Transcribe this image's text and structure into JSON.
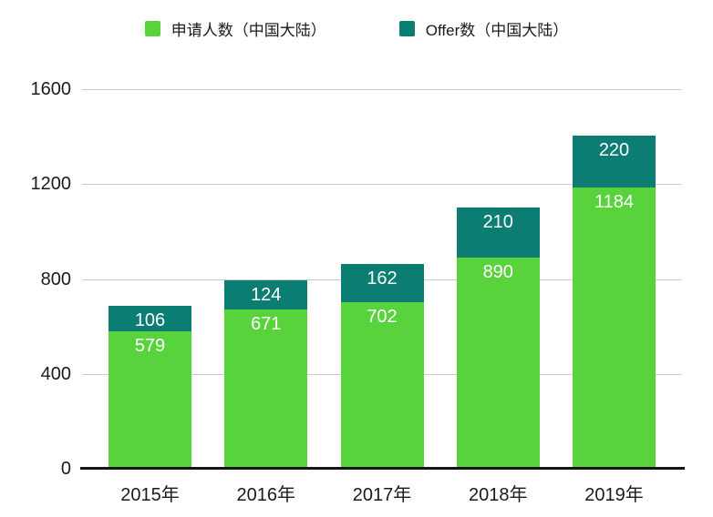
{
  "chart_data": {
    "type": "bar",
    "stacked": true,
    "title": "",
    "categories": [
      "2015年",
      "2016年",
      "2017年",
      "2018年",
      "2019年"
    ],
    "series": [
      {
        "name": "申请人数（中国大陆）",
        "color": "#58D33C",
        "values": [
          579,
          671,
          702,
          890,
          1184
        ]
      },
      {
        "name": "Offer数（中国大陆）",
        "color": "#0C7D72",
        "values": [
          106,
          124,
          162,
          210,
          220
        ]
      }
    ],
    "stack_totals": [
      685,
      795,
      864,
      1100,
      1404
    ],
    "ylim": [
      0,
      1600
    ],
    "yticks": [
      0,
      400,
      800,
      1200,
      1600
    ],
    "grid": true,
    "legend_position": "top",
    "value_labels_visible": true,
    "colors": {
      "gridline": "#CBCBCB",
      "axis_line": "#151515",
      "value_label_text": "#FFFFFF",
      "axis_text": "#1B1B1B"
    }
  }
}
